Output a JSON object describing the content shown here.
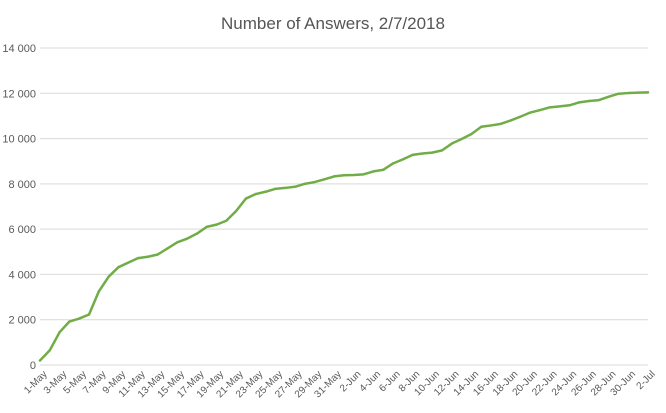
{
  "chart_data": {
    "type": "line",
    "title": "Number of Answers, 2/7/2018",
    "xlabel": "",
    "ylabel": "",
    "ylim": [
      0,
      14000
    ],
    "yticks": [
      0,
      2000,
      4000,
      6000,
      8000,
      10000,
      12000,
      14000
    ],
    "ytick_labels": [
      "0",
      "2 000",
      "4 000",
      "6 000",
      "8 000",
      "10 000",
      "12 000",
      "14 000"
    ],
    "x_tick_labels": [
      "1-May",
      "3-May",
      "5-May",
      "7-May",
      "9-May",
      "11-May",
      "13-May",
      "15-May",
      "17-May",
      "19-May",
      "21-May",
      "23-May",
      "25-May",
      "27-May",
      "29-May",
      "31-May",
      "2-Jun",
      "4-Jun",
      "6-Jun",
      "8-Jun",
      "10-Jun",
      "12-Jun",
      "14-Jun",
      "16-Jun",
      "18-Jun",
      "20-Jun",
      "22-Jun",
      "24-Jun",
      "26-Jun",
      "28-Jun",
      "30-Jun",
      "2-Jul"
    ],
    "grid": true,
    "legend": "none",
    "colors": {
      "line": "#70AD47",
      "grid": "#D9D9D9",
      "text": "#595959"
    },
    "series": [
      {
        "values": [
          200,
          650,
          1450,
          1920,
          2050,
          2230,
          3250,
          3900,
          4320,
          4520,
          4720,
          4780,
          4880,
          5150,
          5420,
          5580,
          5800,
          6100,
          6200,
          6370,
          6800,
          7350,
          7550,
          7650,
          7780,
          7820,
          7870,
          8000,
          8080,
          8200,
          8330,
          8380,
          8390,
          8420,
          8550,
          8620,
          8900,
          9080,
          9280,
          9340,
          9380,
          9480,
          9780,
          9980,
          10200,
          10520,
          10580,
          10650,
          10800,
          10970,
          11150,
          11260,
          11380,
          11420,
          11470,
          11600,
          11660,
          11700,
          11850,
          11980,
          12010,
          12030,
          12040
        ]
      }
    ]
  }
}
